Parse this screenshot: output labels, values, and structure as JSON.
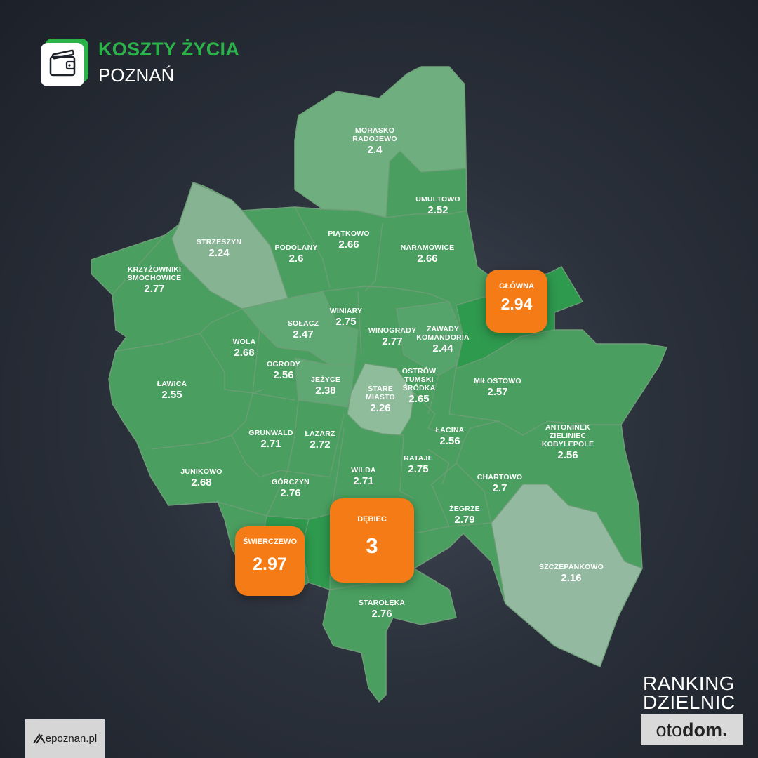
{
  "header": {
    "title": "KOSZTY ŻYCIA",
    "subtitle": "POZNAŃ",
    "icon": "wallet-icon"
  },
  "footer": {
    "ranking_line1": "RANKING",
    "ranking_line2": "DZIELNIC",
    "brand_light": "oto",
    "brand_bold": "dom.",
    "source": "epoznan.pl"
  },
  "colors": {
    "green_accent": "#2bb34a",
    "orange_highlight": "#f47b16",
    "light_green": "#7fb98d",
    "dark_green": "#3f9a58"
  },
  "districts": [
    {
      "key": "morasko",
      "name": "MORASKO\nRADOJEWO",
      "value": "2.4"
    },
    {
      "key": "umultowo",
      "name": "UMULTOWO",
      "value": "2.52"
    },
    {
      "key": "piatkowo",
      "name": "PIĄTKOWO",
      "value": "2.66"
    },
    {
      "key": "naramowice",
      "name": "NARAMOWICE",
      "value": "2.66"
    },
    {
      "key": "strzeszyn",
      "name": "STRZESZYN",
      "value": "2.24"
    },
    {
      "key": "podolany",
      "name": "PODOLANY",
      "value": "2.6"
    },
    {
      "key": "krzyzowniki",
      "name": "KRZYŻOWNIKI\nSMOCHOWICE",
      "value": "2.77"
    },
    {
      "key": "winiary",
      "name": "WINIARY",
      "value": "2.75"
    },
    {
      "key": "solacz",
      "name": "SOŁACZ",
      "value": "2.47"
    },
    {
      "key": "wola",
      "name": "WOLA",
      "value": "2.68"
    },
    {
      "key": "winogrady",
      "name": "WINOGRADY",
      "value": "2.77"
    },
    {
      "key": "zawady",
      "name": "ZAWADY\nKOMANDORIA",
      "value": "2.44"
    },
    {
      "key": "ogrody",
      "name": "OGRODY",
      "value": "2.56"
    },
    {
      "key": "jezyce",
      "name": "JEŻYCE",
      "value": "2.38"
    },
    {
      "key": "lawica",
      "name": "ŁAWICA",
      "value": "2.55"
    },
    {
      "key": "stare_miasto",
      "name": "STARE\nMIASTO",
      "value": "2.26"
    },
    {
      "key": "ostrow",
      "name": "OSTRÓW\nTUMSKI\nŚRÓDKA",
      "value": "2.65"
    },
    {
      "key": "milostowo",
      "name": "MIŁOSTOWO",
      "value": "2.57"
    },
    {
      "key": "grunwald",
      "name": "GRUNWALD",
      "value": "2.71"
    },
    {
      "key": "lazarz",
      "name": "ŁAZARZ",
      "value": "2.72"
    },
    {
      "key": "lacina",
      "name": "ŁACINA",
      "value": "2.56"
    },
    {
      "key": "antoninek",
      "name": "ANTONINEK\nZIELINIEC\nKOBYLEPOLE",
      "value": "2.56"
    },
    {
      "key": "rataje",
      "name": "RATAJE",
      "value": "2.75"
    },
    {
      "key": "junikowo",
      "name": "JUNIKOWO",
      "value": "2.68"
    },
    {
      "key": "wilda",
      "name": "WILDA",
      "value": "2.71"
    },
    {
      "key": "chartowo",
      "name": "CHARTOWO",
      "value": "2.7"
    },
    {
      "key": "gorczyn",
      "name": "GÓRCZYN",
      "value": "2.76"
    },
    {
      "key": "zegrze",
      "name": "ŻEGRZE",
      "value": "2.79"
    },
    {
      "key": "szczepankowo",
      "name": "SZCZEPANKOWO",
      "value": "2.16"
    },
    {
      "key": "staroleka",
      "name": "STAROŁĘKA",
      "value": "2.76"
    }
  ],
  "highlights": [
    {
      "key": "glowna",
      "name": "GŁÓWNA",
      "value": "2.94"
    },
    {
      "key": "debiec",
      "name": "DĘBIEC",
      "value": "3"
    },
    {
      "key": "swierczewo",
      "name": "ŚWIERCZEWO",
      "value": "2.97"
    }
  ]
}
